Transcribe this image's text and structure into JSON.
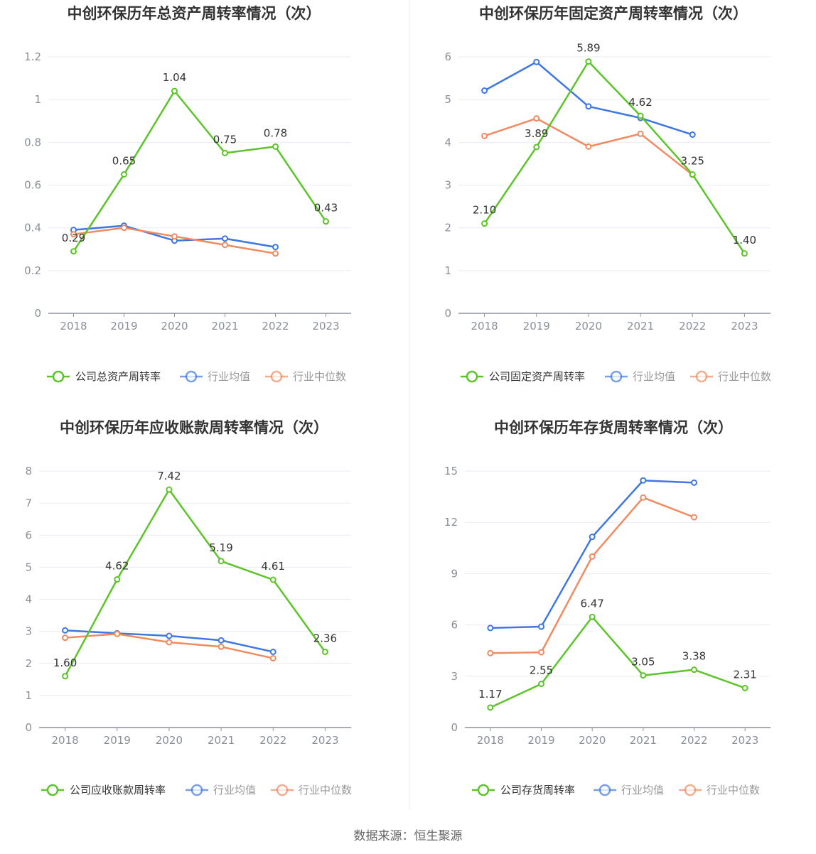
{
  "colors": {
    "company": "#5cc429",
    "industry_avg": "#3f77e0",
    "industry_median": "#f08a60",
    "grid": "#e8ebf2",
    "axis": "#8e929b",
    "divider": "#eeeeee"
  },
  "source_text": "数据来源：恒生聚源",
  "chart_data": [
    {
      "type": "line",
      "title": "中创环保历年总资产周转率情况（次）",
      "categories": [
        "2018",
        "2019",
        "2020",
        "2021",
        "2022",
        "2023"
      ],
      "ylim": [
        0,
        1.2
      ],
      "yticks": [
        "0",
        "0.2",
        "0.4",
        "0.6",
        "0.8",
        "1",
        "1.2"
      ],
      "legend_position": "bottom",
      "series": [
        {
          "name": "公司总资产周转率",
          "role": "company",
          "values": [
            0.29,
            0.65,
            1.04,
            0.75,
            0.78,
            0.43
          ],
          "labels": [
            "0.29",
            "0.65",
            "1.04",
            "0.75",
            "0.78",
            "0.43"
          ]
        },
        {
          "name": "行业均值",
          "role": "industry_avg",
          "values": [
            0.39,
            0.41,
            0.34,
            0.35,
            0.31,
            null
          ]
        },
        {
          "name": "行业中位数",
          "role": "industry_median",
          "values": [
            0.37,
            0.4,
            0.36,
            0.32,
            0.28,
            null
          ]
        }
      ]
    },
    {
      "type": "line",
      "title": "中创环保历年固定资产周转率情况（次）",
      "categories": [
        "2018",
        "2019",
        "2020",
        "2021",
        "2022",
        "2023"
      ],
      "ylim": [
        0,
        6
      ],
      "yticks": [
        "0",
        "1",
        "2",
        "3",
        "4",
        "5",
        "6"
      ],
      "legend_position": "bottom",
      "series": [
        {
          "name": "公司固定资产周转率",
          "role": "company",
          "values": [
            2.1,
            3.89,
            5.89,
            4.62,
            3.25,
            1.4
          ],
          "labels": [
            "2.10",
            "3.89",
            "5.89",
            "4.62",
            "3.25",
            "1.40"
          ]
        },
        {
          "name": "行业均值",
          "role": "industry_avg",
          "values": [
            5.21,
            5.88,
            4.84,
            4.57,
            4.18,
            null
          ]
        },
        {
          "name": "行业中位数",
          "role": "industry_median",
          "values": [
            4.15,
            4.56,
            3.9,
            4.2,
            3.24,
            null
          ]
        }
      ]
    },
    {
      "type": "line",
      "title": "中创环保历年应收账款周转率情况（次）",
      "categories": [
        "2018",
        "2019",
        "2020",
        "2021",
        "2022",
        "2023"
      ],
      "ylim": [
        0,
        8
      ],
      "yticks": [
        "0",
        "1",
        "2",
        "3",
        "4",
        "5",
        "6",
        "7",
        "8"
      ],
      "legend_position": "bottom",
      "series": [
        {
          "name": "公司应收账款周转率",
          "role": "company",
          "values": [
            1.6,
            4.62,
            7.42,
            5.19,
            4.61,
            2.36
          ],
          "labels": [
            "1.60",
            "4.62",
            "7.42",
            "5.19",
            "4.61",
            "2.36"
          ]
        },
        {
          "name": "行业均值",
          "role": "industry_avg",
          "values": [
            3.03,
            2.94,
            2.86,
            2.72,
            2.36,
            null
          ]
        },
        {
          "name": "行业中位数",
          "role": "industry_median",
          "values": [
            2.8,
            2.92,
            2.66,
            2.52,
            2.16,
            null
          ]
        }
      ]
    },
    {
      "type": "line",
      "title": "中创环保历年存货周转率情况（次）",
      "categories": [
        "2018",
        "2019",
        "2020",
        "2021",
        "2022",
        "2023"
      ],
      "ylim": [
        0,
        15
      ],
      "yticks": [
        "0",
        "3",
        "6",
        "9",
        "12",
        "15"
      ],
      "legend_position": "bottom",
      "series": [
        {
          "name": "公司存货周转率",
          "role": "company",
          "values": [
            1.17,
            2.55,
            6.47,
            3.05,
            3.38,
            2.31
          ],
          "labels": [
            "1.17",
            "2.55",
            "6.47",
            "3.05",
            "3.38",
            "2.31"
          ]
        },
        {
          "name": "行业均值",
          "role": "industry_avg",
          "values": [
            5.82,
            5.9,
            11.15,
            14.45,
            14.32,
            null
          ]
        },
        {
          "name": "行业中位数",
          "role": "industry_median",
          "values": [
            4.35,
            4.4,
            10.0,
            13.45,
            12.3,
            null
          ]
        }
      ]
    }
  ]
}
